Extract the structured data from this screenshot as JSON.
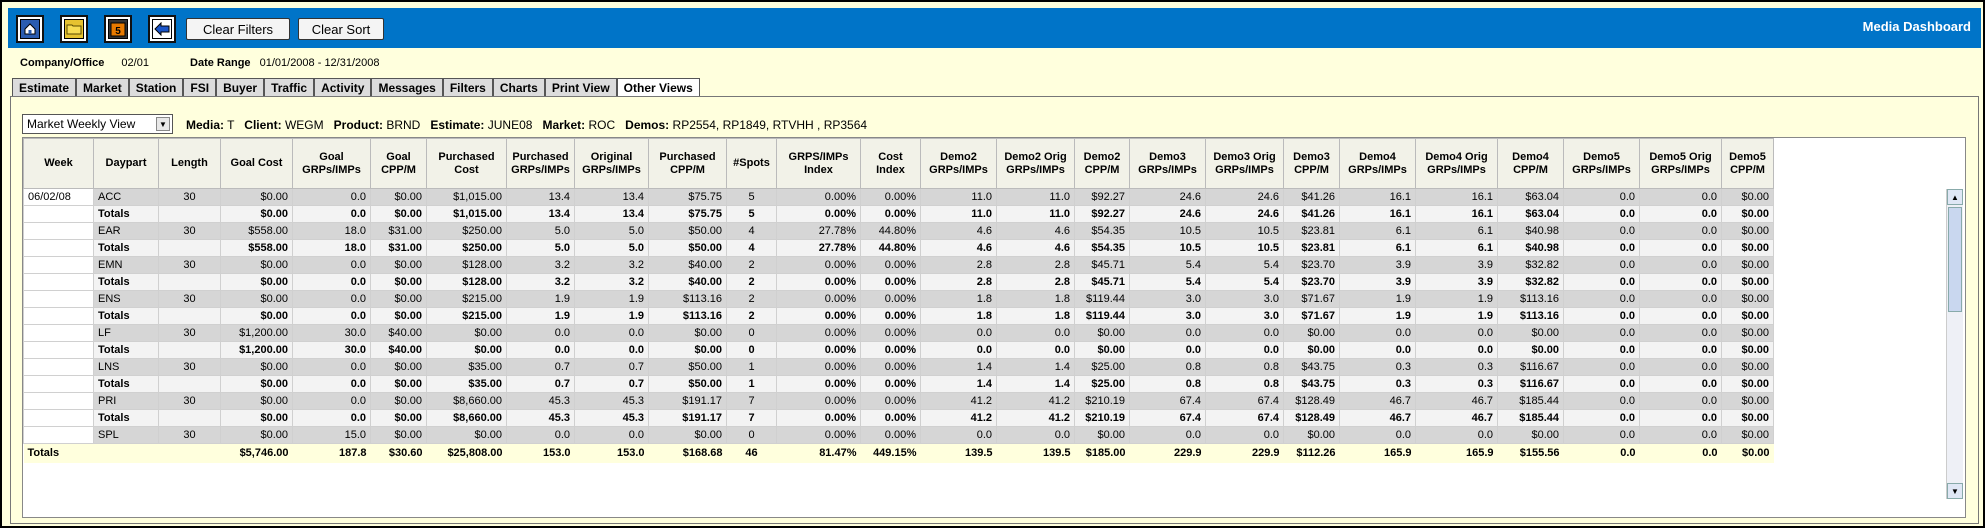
{
  "app_title": "Media Dashboard",
  "toolbar": {
    "icons": [
      "home-icon",
      "folder-open-icon",
      "calendar-icon",
      "back-arrow-icon"
    ],
    "clear_filters": "Clear Filters",
    "clear_sort": "Clear Sort"
  },
  "info": {
    "company_label": "Company/Office",
    "company_value": "02/01",
    "date_label": "Date Range",
    "date_value": "01/01/2008 - 12/31/2008"
  },
  "tabs": [
    "Estimate",
    "Market",
    "Station",
    "FSI",
    "Buyer",
    "Traffic",
    "Activity",
    "Messages",
    "Filters",
    "Charts",
    "Print View",
    "Other Views"
  ],
  "active_tab": "Other Views",
  "view_select": "Market Weekly View",
  "filters": {
    "media_label": "Media:",
    "media": "T",
    "client_label": "Client:",
    "client": "WEGM",
    "product_label": "Product:",
    "product": "BRND",
    "estimate_label": "Estimate:",
    "estimate": "JUNE08",
    "market_label": "Market:",
    "market": "ROC",
    "demos_label": "Demos:",
    "demos": "RP2554, RP1849, RTVHH , RP3564"
  },
  "columns": [
    "Week",
    "Daypart",
    "Length",
    "Goal Cost",
    "Goal GRPs/IMPs",
    "Goal CPP/M",
    "Purchased Cost",
    "Purchased GRPs/IMPs",
    "Original GRPs/IMPs",
    "Purchased CPP/M",
    "#Spots",
    "GRPS/IMPs Index",
    "Cost Index",
    "Demo2 GRPs/IMPs",
    "Demo2 Orig GRPs/IMPs",
    "Demo2 CPP/M",
    "Demo3 GRPs/IMPs",
    "Demo3 Orig GRPs/IMPs",
    "Demo3 CPP/M",
    "Demo4 GRPs/IMPs",
    "Demo4 Orig GRPs/IMPs",
    "Demo4 CPP/M",
    "Demo5 GRPs/IMPs",
    "Demo5 Orig GRPs/IMPs",
    "Demo5 CPP/M"
  ],
  "rows": [
    {
      "type": "data",
      "cells": [
        "06/02/08",
        "ACC",
        "30",
        "$0.00",
        "0.0",
        "$0.00",
        "$1,015.00",
        "13.4",
        "13.4",
        "$75.75",
        "5",
        "0.00%",
        "0.00%",
        "11.0",
        "11.0",
        "$92.27",
        "24.6",
        "24.6",
        "$41.26",
        "16.1",
        "16.1",
        "$63.04",
        "0.0",
        "0.0",
        "$0.00"
      ]
    },
    {
      "type": "total",
      "cells": [
        "",
        "Totals",
        "",
        "$0.00",
        "0.0",
        "$0.00",
        "$1,015.00",
        "13.4",
        "13.4",
        "$75.75",
        "5",
        "0.00%",
        "0.00%",
        "11.0",
        "11.0",
        "$92.27",
        "24.6",
        "24.6",
        "$41.26",
        "16.1",
        "16.1",
        "$63.04",
        "0.0",
        "0.0",
        "$0.00"
      ]
    },
    {
      "type": "data",
      "cells": [
        "",
        "EAR",
        "30",
        "$558.00",
        "18.0",
        "$31.00",
        "$250.00",
        "5.0",
        "5.0",
        "$50.00",
        "4",
        "27.78%",
        "44.80%",
        "4.6",
        "4.6",
        "$54.35",
        "10.5",
        "10.5",
        "$23.81",
        "6.1",
        "6.1",
        "$40.98",
        "0.0",
        "0.0",
        "$0.00"
      ]
    },
    {
      "type": "total",
      "cells": [
        "",
        "Totals",
        "",
        "$558.00",
        "18.0",
        "$31.00",
        "$250.00",
        "5.0",
        "5.0",
        "$50.00",
        "4",
        "27.78%",
        "44.80%",
        "4.6",
        "4.6",
        "$54.35",
        "10.5",
        "10.5",
        "$23.81",
        "6.1",
        "6.1",
        "$40.98",
        "0.0",
        "0.0",
        "$0.00"
      ]
    },
    {
      "type": "data",
      "cells": [
        "",
        "EMN",
        "30",
        "$0.00",
        "0.0",
        "$0.00",
        "$128.00",
        "3.2",
        "3.2",
        "$40.00",
        "2",
        "0.00%",
        "0.00%",
        "2.8",
        "2.8",
        "$45.71",
        "5.4",
        "5.4",
        "$23.70",
        "3.9",
        "3.9",
        "$32.82",
        "0.0",
        "0.0",
        "$0.00"
      ]
    },
    {
      "type": "total",
      "cells": [
        "",
        "Totals",
        "",
        "$0.00",
        "0.0",
        "$0.00",
        "$128.00",
        "3.2",
        "3.2",
        "$40.00",
        "2",
        "0.00%",
        "0.00%",
        "2.8",
        "2.8",
        "$45.71",
        "5.4",
        "5.4",
        "$23.70",
        "3.9",
        "3.9",
        "$32.82",
        "0.0",
        "0.0",
        "$0.00"
      ]
    },
    {
      "type": "data",
      "cells": [
        "",
        "ENS",
        "30",
        "$0.00",
        "0.0",
        "$0.00",
        "$215.00",
        "1.9",
        "1.9",
        "$113.16",
        "2",
        "0.00%",
        "0.00%",
        "1.8",
        "1.8",
        "$119.44",
        "3.0",
        "3.0",
        "$71.67",
        "1.9",
        "1.9",
        "$113.16",
        "0.0",
        "0.0",
        "$0.00"
      ]
    },
    {
      "type": "total",
      "cells": [
        "",
        "Totals",
        "",
        "$0.00",
        "0.0",
        "$0.00",
        "$215.00",
        "1.9",
        "1.9",
        "$113.16",
        "2",
        "0.00%",
        "0.00%",
        "1.8",
        "1.8",
        "$119.44",
        "3.0",
        "3.0",
        "$71.67",
        "1.9",
        "1.9",
        "$113.16",
        "0.0",
        "0.0",
        "$0.00"
      ]
    },
    {
      "type": "data",
      "cells": [
        "",
        "LF",
        "30",
        "$1,200.00",
        "30.0",
        "$40.00",
        "$0.00",
        "0.0",
        "0.0",
        "$0.00",
        "0",
        "0.00%",
        "0.00%",
        "0.0",
        "0.0",
        "$0.00",
        "0.0",
        "0.0",
        "$0.00",
        "0.0",
        "0.0",
        "$0.00",
        "0.0",
        "0.0",
        "$0.00"
      ]
    },
    {
      "type": "total",
      "cells": [
        "",
        "Totals",
        "",
        "$1,200.00",
        "30.0",
        "$40.00",
        "$0.00",
        "0.0",
        "0.0",
        "$0.00",
        "0",
        "0.00%",
        "0.00%",
        "0.0",
        "0.0",
        "$0.00",
        "0.0",
        "0.0",
        "$0.00",
        "0.0",
        "0.0",
        "$0.00",
        "0.0",
        "0.0",
        "$0.00"
      ]
    },
    {
      "type": "data",
      "cells": [
        "",
        "LNS",
        "30",
        "$0.00",
        "0.0",
        "$0.00",
        "$35.00",
        "0.7",
        "0.7",
        "$50.00",
        "1",
        "0.00%",
        "0.00%",
        "1.4",
        "1.4",
        "$25.00",
        "0.8",
        "0.8",
        "$43.75",
        "0.3",
        "0.3",
        "$116.67",
        "0.0",
        "0.0",
        "$0.00"
      ]
    },
    {
      "type": "total",
      "cells": [
        "",
        "Totals",
        "",
        "$0.00",
        "0.0",
        "$0.00",
        "$35.00",
        "0.7",
        "0.7",
        "$50.00",
        "1",
        "0.00%",
        "0.00%",
        "1.4",
        "1.4",
        "$25.00",
        "0.8",
        "0.8",
        "$43.75",
        "0.3",
        "0.3",
        "$116.67",
        "0.0",
        "0.0",
        "$0.00"
      ]
    },
    {
      "type": "data",
      "cells": [
        "",
        "PRI",
        "30",
        "$0.00",
        "0.0",
        "$0.00",
        "$8,660.00",
        "45.3",
        "45.3",
        "$191.17",
        "7",
        "0.00%",
        "0.00%",
        "41.2",
        "41.2",
        "$210.19",
        "67.4",
        "67.4",
        "$128.49",
        "46.7",
        "46.7",
        "$185.44",
        "0.0",
        "0.0",
        "$0.00"
      ]
    },
    {
      "type": "total",
      "cells": [
        "",
        "Totals",
        "",
        "$0.00",
        "0.0",
        "$0.00",
        "$8,660.00",
        "45.3",
        "45.3",
        "$191.17",
        "7",
        "0.00%",
        "0.00%",
        "41.2",
        "41.2",
        "$210.19",
        "67.4",
        "67.4",
        "$128.49",
        "46.7",
        "46.7",
        "$185.44",
        "0.0",
        "0.0",
        "$0.00"
      ]
    },
    {
      "type": "data",
      "cells": [
        "",
        "SPL",
        "30",
        "$0.00",
        "15.0",
        "$0.00",
        "$0.00",
        "0.0",
        "0.0",
        "$0.00",
        "0",
        "0.00%",
        "0.00%",
        "0.0",
        "0.0",
        "$0.00",
        "0.0",
        "0.0",
        "$0.00",
        "0.0",
        "0.0",
        "$0.00",
        "0.0",
        "0.0",
        "$0.00"
      ]
    }
  ],
  "grand_total": [
    "Totals",
    "",
    "",
    "$5,746.00",
    "187.8",
    "$30.60",
    "$25,808.00",
    "153.0",
    "153.0",
    "$168.68",
    "46",
    "81.47%",
    "449.15%",
    "139.5",
    "139.5",
    "$185.00",
    "229.9",
    "229.9",
    "$112.26",
    "165.9",
    "165.9",
    "$155.56",
    "0.0",
    "0.0",
    "$0.00"
  ]
}
